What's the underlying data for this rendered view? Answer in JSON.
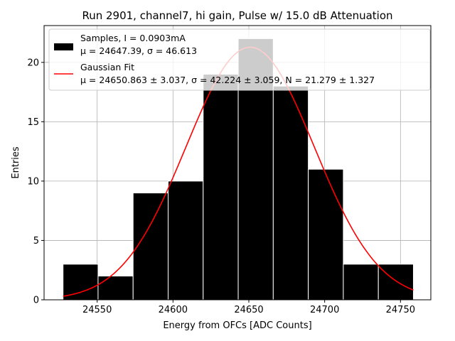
{
  "chart_data": {
    "type": "bar",
    "title": "Run 2901, channel7, hi gain, Pulse w/ 15.0 dB Attenuation",
    "xlabel": "Energy from OFCs [ADC Counts]",
    "ylabel": "Entries",
    "xlim": [
      24515,
      24770
    ],
    "ylim": [
      0,
      23.1
    ],
    "xticks": [
      24550,
      24600,
      24650,
      24700,
      24750
    ],
    "yticks": [
      0,
      5,
      10,
      15,
      20
    ],
    "grid": true,
    "legend_position": "top-left",
    "histogram": {
      "name": "Samples, I = 0.0903mA",
      "stats_label": "μ = 24647.39, σ = 46.613",
      "bin_edges": [
        24527.5,
        24550.6,
        24573.7,
        24596.8,
        24619.9,
        24643.0,
        24666.1,
        24689.2,
        24712.3,
        24735.4,
        24758.5
      ],
      "counts": [
        3,
        2,
        9,
        10,
        19,
        22,
        18,
        11,
        3,
        3
      ],
      "color": "#000000"
    },
    "fit": {
      "name": "Gaussian Fit",
      "stats_label": "μ = 24650.863 ± 3.037, σ = 42.224 ± 3.059, N = 21.279 ± 1.327",
      "mu": 24650.863,
      "sigma": 42.224,
      "amplitude": 21.279,
      "range": [
        24527.5,
        24758.5
      ],
      "color": "#ff0000"
    }
  }
}
